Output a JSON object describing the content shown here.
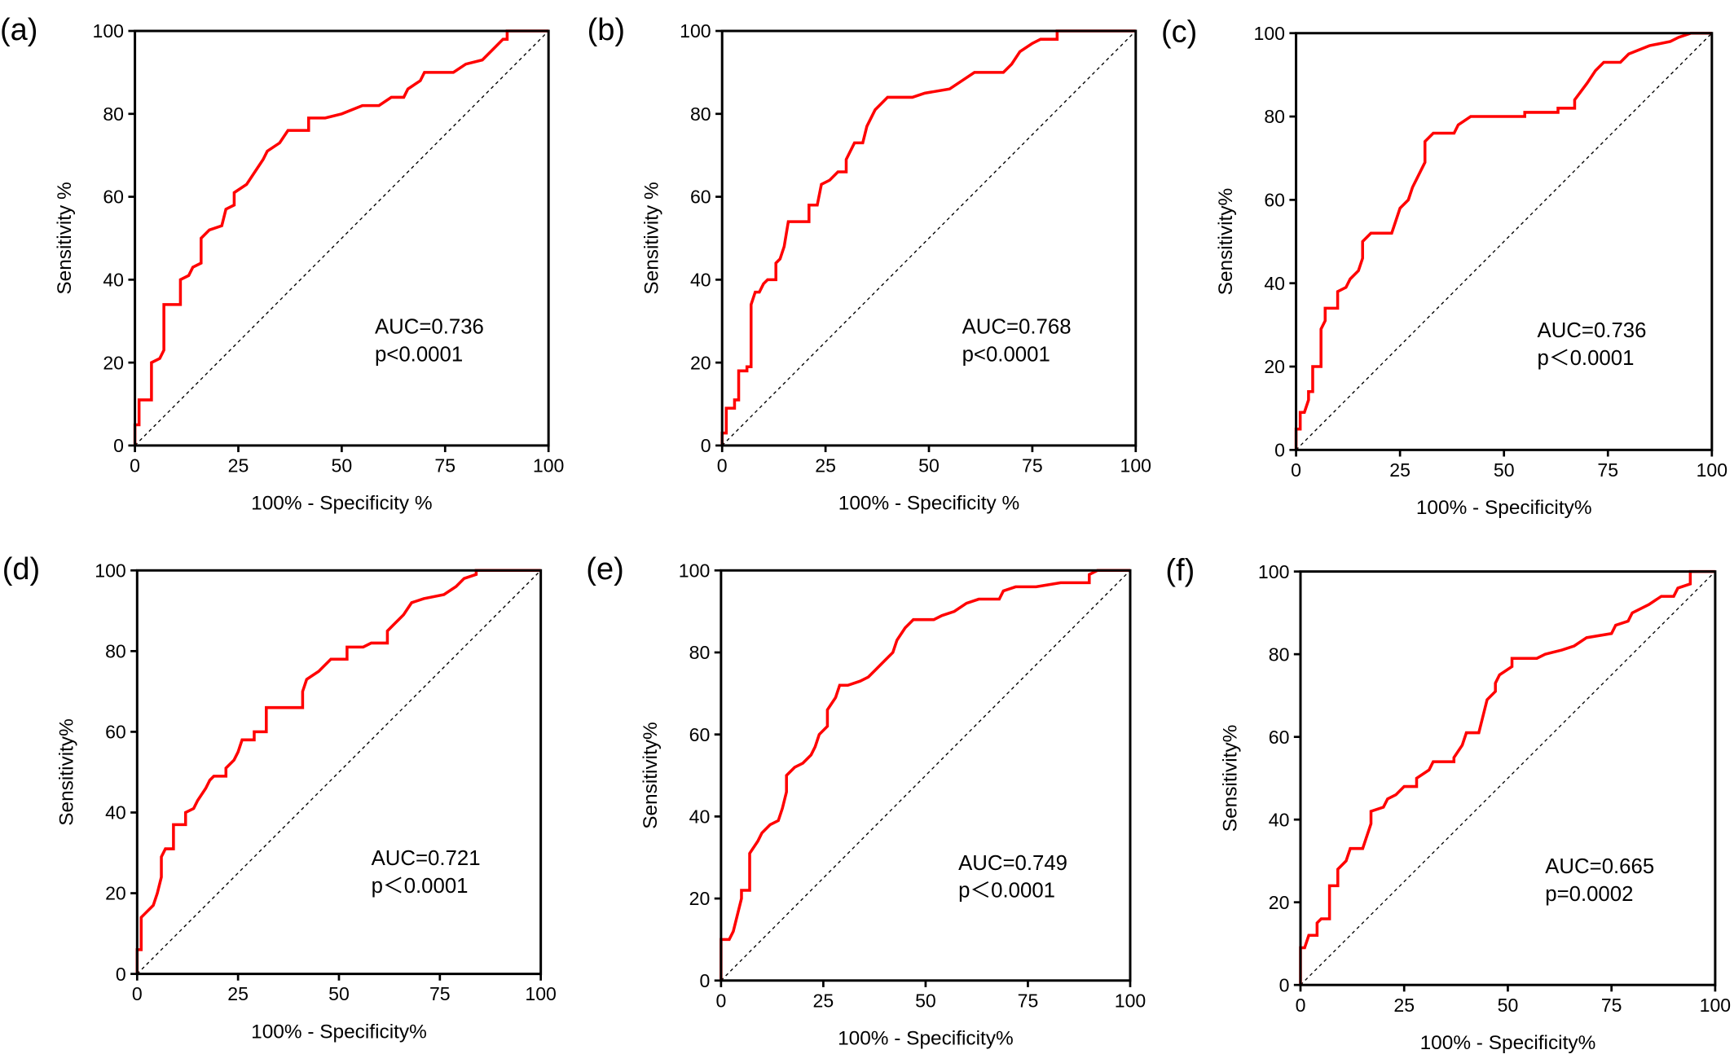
{
  "chart_data": [
    {
      "type": "line",
      "label": "(a)",
      "xlabel": "100% - Specificity %",
      "ylabel": "Sensitivity %",
      "annotations": [
        "AUC=0.736",
        "p<0.0001"
      ],
      "xlim": [
        0,
        100
      ],
      "ylim": [
        0,
        100
      ],
      "xticks": [
        0,
        25,
        50,
        75,
        100
      ],
      "yticks": [
        0,
        20,
        40,
        60,
        80,
        100
      ],
      "color": "#ff0000",
      "x": [
        0,
        0,
        1,
        1,
        4,
        4,
        4,
        6,
        7,
        7,
        11,
        11,
        13,
        14,
        16,
        16,
        18,
        21,
        22,
        24,
        24,
        27,
        29,
        31,
        32,
        35,
        37,
        42,
        42,
        46,
        50,
        55,
        59,
        62,
        65,
        66,
        69,
        70,
        77,
        80,
        84,
        87,
        89,
        90,
        90,
        100
      ],
      "values": [
        0,
        5,
        5,
        11,
        11,
        16,
        20,
        21,
        23,
        34,
        34,
        40,
        41,
        43,
        44,
        50,
        52,
        53,
        57,
        58,
        61,
        63,
        66,
        69,
        71,
        73,
        76,
        76,
        79,
        79,
        80,
        82,
        82,
        84,
        84,
        86,
        88,
        90,
        90,
        92,
        93,
        96,
        98,
        98,
        100,
        100
      ]
    },
    {
      "type": "line",
      "label": "(b)",
      "xlabel": "100% - Specificity %",
      "ylabel": "Sensitivity %",
      "annotations": [
        "AUC=0.768",
        "p<0.0001"
      ],
      "xlim": [
        0,
        100
      ],
      "ylim": [
        0,
        100
      ],
      "xticks": [
        0,
        25,
        50,
        75,
        100
      ],
      "yticks": [
        0,
        20,
        40,
        60,
        80,
        100
      ],
      "color": "#ff0000",
      "x": [
        0,
        0,
        1,
        1,
        3,
        3,
        4,
        4,
        6,
        6,
        7,
        7,
        8,
        9,
        10,
        11,
        13,
        13,
        14,
        15,
        16,
        21,
        21,
        23,
        24,
        26,
        28,
        30,
        30,
        32,
        34,
        35,
        37,
        39,
        40,
        46,
        49,
        55,
        58,
        61,
        68,
        70,
        72,
        75,
        77,
        81,
        81,
        100
      ],
      "values": [
        0,
        3,
        3,
        9,
        9,
        11,
        11,
        18,
        18,
        19,
        19,
        34,
        37,
        37,
        39,
        40,
        40,
        44,
        45,
        48,
        54,
        54,
        58,
        58,
        63,
        64,
        66,
        66,
        69,
        73,
        73,
        77,
        81,
        83,
        84,
        84,
        85,
        86,
        88,
        90,
        90,
        92,
        95,
        97,
        98,
        98,
        100,
        100
      ]
    },
    {
      "type": "line",
      "label": "(c)",
      "xlabel": "100% - Specificity%",
      "ylabel": "Sensitivity%",
      "annotations": [
        "AUC=0.736",
        "p＜0.0001"
      ],
      "xlim": [
        0,
        100
      ],
      "ylim": [
        0,
        100
      ],
      "xticks": [
        0,
        25,
        50,
        75,
        100
      ],
      "yticks": [
        0,
        20,
        40,
        60,
        80,
        100
      ],
      "color": "#ff0000",
      "x": [
        0,
        0,
        1,
        1,
        2,
        3,
        3,
        4,
        4,
        6,
        6,
        7,
        7,
        10,
        10,
        12,
        13,
        15,
        16,
        16,
        18,
        23,
        24,
        25,
        27,
        28,
        29,
        30,
        31,
        31,
        33,
        38,
        39,
        42,
        55,
        55,
        63,
        63,
        67,
        67,
        70,
        72,
        74,
        78,
        80,
        85,
        90,
        92,
        95,
        100
      ],
      "values": [
        0,
        5,
        5,
        9,
        9,
        12,
        14,
        14,
        20,
        20,
        29,
        31,
        34,
        34,
        38,
        39,
        41,
        43,
        46,
        50,
        52,
        52,
        55,
        58,
        60,
        63,
        65,
        67,
        69,
        74,
        76,
        76,
        78,
        80,
        80,
        81,
        81,
        82,
        82,
        84,
        88,
        91,
        93,
        93,
        95,
        97,
        98,
        99,
        100,
        100
      ]
    },
    {
      "type": "line",
      "label": "(d)",
      "xlabel": "100% - Specificity%",
      "ylabel": "Sensitivity%",
      "annotations": [
        "AUC=0.721",
        "p＜0.0001"
      ],
      "xlim": [
        0,
        100
      ],
      "ylim": [
        0,
        100
      ],
      "xticks": [
        0,
        25,
        50,
        75,
        100
      ],
      "yticks": [
        0,
        20,
        40,
        60,
        80,
        100
      ],
      "color": "#ff0000",
      "x": [
        0,
        0,
        1,
        1,
        2,
        4,
        5,
        6,
        6,
        7,
        9,
        9,
        12,
        12,
        14,
        15,
        17,
        18,
        19,
        22,
        22,
        24,
        25,
        26,
        29,
        29,
        32,
        32,
        41,
        41,
        42,
        45,
        46,
        48,
        52,
        52,
        56,
        58,
        62,
        62,
        64,
        66,
        68,
        71,
        76,
        79,
        81,
        84,
        84,
        100
      ],
      "values": [
        0,
        6,
        6,
        14,
        15,
        17,
        20,
        24,
        29,
        31,
        31,
        37,
        37,
        40,
        41,
        43,
        46,
        48,
        49,
        49,
        51,
        53,
        55,
        58,
        58,
        60,
        60,
        66,
        66,
        70,
        73,
        75,
        76,
        78,
        78,
        81,
        81,
        82,
        82,
        85,
        87,
        89,
        92,
        93,
        94,
        96,
        98,
        99,
        100,
        100
      ]
    },
    {
      "type": "line",
      "label": "(e)",
      "xlabel": "100% - Specificity%",
      "ylabel": "Sensitivity%",
      "annotations": [
        "AUC=0.749",
        "p＜0.0001"
      ],
      "xlim": [
        0,
        100
      ],
      "ylim": [
        0,
        100
      ],
      "xticks": [
        0,
        25,
        50,
        75,
        100
      ],
      "yticks": [
        0,
        20,
        40,
        60,
        80,
        100
      ],
      "color": "#ff0000",
      "x": [
        0,
        0,
        2,
        3,
        4,
        5,
        5,
        7,
        7,
        9,
        10,
        12,
        14,
        15,
        16,
        16,
        18,
        20,
        22,
        23,
        24,
        26,
        26,
        28,
        29,
        31,
        34,
        36,
        38,
        40,
        42,
        43,
        45,
        47,
        52,
        54,
        57,
        60,
        63,
        68,
        69,
        72,
        77,
        83,
        90,
        90,
        92,
        100
      ],
      "values": [
        0,
        10,
        10,
        12,
        16,
        20,
        22,
        22,
        31,
        34,
        36,
        38,
        39,
        42,
        46,
        50,
        52,
        53,
        55,
        57,
        60,
        62,
        66,
        69,
        72,
        72,
        73,
        74,
        76,
        78,
        80,
        83,
        86,
        88,
        88,
        89,
        90,
        92,
        93,
        93,
        95,
        96,
        96,
        97,
        97,
        99,
        100,
        100
      ]
    },
    {
      "type": "line",
      "label": "(f)",
      "xlabel": "100% - Specificity%",
      "ylabel": "Sensitivity%",
      "annotations": [
        "AUC=0.665",
        "p=0.0002"
      ],
      "xlim": [
        0,
        100
      ],
      "ylim": [
        0,
        100
      ],
      "xticks": [
        0,
        25,
        50,
        75,
        100
      ],
      "yticks": [
        0,
        20,
        40,
        60,
        80,
        100
      ],
      "color": "#ff0000",
      "x": [
        0,
        0,
        1,
        2,
        4,
        4,
        5,
        7,
        7,
        9,
        9,
        11,
        12,
        15,
        16,
        17,
        17,
        20,
        21,
        23,
        25,
        28,
        28,
        31,
        32,
        37,
        37,
        39,
        40,
        43,
        44,
        45,
        47,
        47,
        48,
        51,
        51,
        57,
        59,
        63,
        66,
        69,
        75,
        76,
        79,
        80,
        84,
        87,
        90,
        91,
        94,
        94,
        100
      ],
      "values": [
        0,
        9,
        9,
        12,
        12,
        15,
        16,
        16,
        24,
        24,
        28,
        30,
        33,
        33,
        36,
        39,
        42,
        43,
        45,
        46,
        48,
        48,
        50,
        52,
        54,
        54,
        55,
        58,
        61,
        61,
        65,
        69,
        71,
        73,
        75,
        77,
        79,
        79,
        80,
        81,
        82,
        84,
        85,
        87,
        88,
        90,
        92,
        94,
        94,
        96,
        97,
        100,
        100
      ]
    }
  ]
}
